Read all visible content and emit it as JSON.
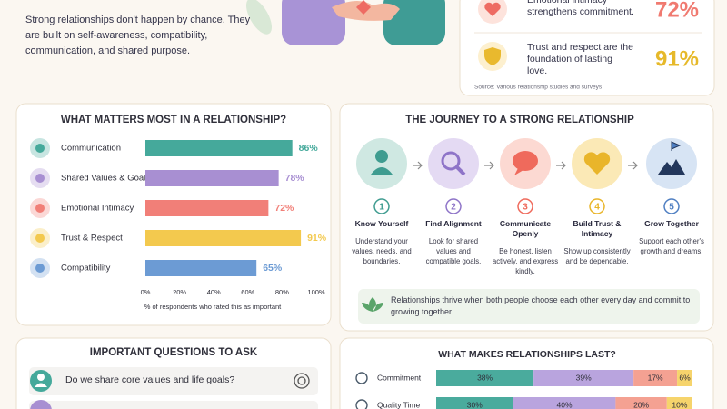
{
  "intro": {
    "text": "Strong relationships don't happen by chance. They are built on self-awareness, compatibility, communication, and shared purpose."
  },
  "stats": [
    {
      "text": "Emotional intimacy strengthens commitment.",
      "value": "72%"
    },
    {
      "text": "Trust and respect are the foundation of lasting love.",
      "value": "91%"
    }
  ],
  "source": "Source: Various relationship studies and surveys",
  "chart_data": [
    {
      "type": "hbar",
      "title": "WHAT MATTERS MOST IN A RELATIONSHIP?",
      "categories": [
        "Communication",
        "Shared Values & Goals",
        "Emotional Intimacy",
        "Trust & Respect",
        "Compatibility"
      ],
      "values": [
        86,
        78,
        72,
        91,
        65
      ],
      "value_labels": [
        "86%",
        "78%",
        "72%",
        "91%",
        "65%"
      ],
      "colors": [
        "#45a99b",
        "#a88fd2",
        "#f17f78",
        "#f3c94e",
        "#6c9bd4"
      ],
      "xlim": [
        0,
        100
      ],
      "xticks": [
        {
          "value": 0,
          "label": "0%"
        },
        {
          "value": 20,
          "label": "20%"
        },
        {
          "value": 40,
          "label": "40%"
        },
        {
          "value": 60,
          "label": "60%"
        },
        {
          "value": 80,
          "label": "80%"
        },
        {
          "value": 100,
          "label": "100%"
        }
      ],
      "xlabel": "% of respondents who rated this as important"
    },
    {
      "type": "stacked_hbar",
      "title": "WHAT MAKES RELATIONSHIPS LAST?",
      "categories": [
        "Commitment",
        "Quality Time"
      ],
      "xlim": [
        0,
        100
      ],
      "series": [
        {
          "color": "#4aab9d",
          "values": [
            38,
            30
          ],
          "value_labels": [
            "38%",
            "30%"
          ]
        },
        {
          "color": "#b9a4de",
          "values": [
            39,
            40
          ],
          "value_labels": [
            "39%",
            "40%"
          ]
        },
        {
          "color": "#f4a192",
          "values": [
            17,
            20
          ],
          "value_labels": [
            "17%",
            "20%"
          ]
        },
        {
          "color": "#f6d46c",
          "values": [
            6,
            10
          ],
          "value_labels": [
            "6%",
            "10%"
          ]
        }
      ]
    }
  ],
  "journey": {
    "title": "THE JOURNEY  TO A STRONG RELATIONSHIP",
    "steps": [
      {
        "number": 1,
        "title": "Know Yourself",
        "text": "Understand your values, needs, and boundaries."
      },
      {
        "number": 2,
        "title": "Find Alignment",
        "text": "Look for shared values and compatible goals."
      },
      {
        "number": 3,
        "title": "Communicate Openly",
        "text": "Be honest, listen actively, and express kindly."
      },
      {
        "number": 4,
        "title": "Build Trust & Intimacy",
        "text": "Show up consistently and be dependable."
      },
      {
        "number": 5,
        "title": "Grow Together",
        "text": "Support each other's growth and dreams."
      }
    ],
    "footer": "Relationships thrive when both people choose each other every day and commit to growing together."
  },
  "questions": {
    "title": "IMPORTANT QUESTIONS TO ASK",
    "items": [
      "Do we share core values and life goals?"
    ]
  }
}
